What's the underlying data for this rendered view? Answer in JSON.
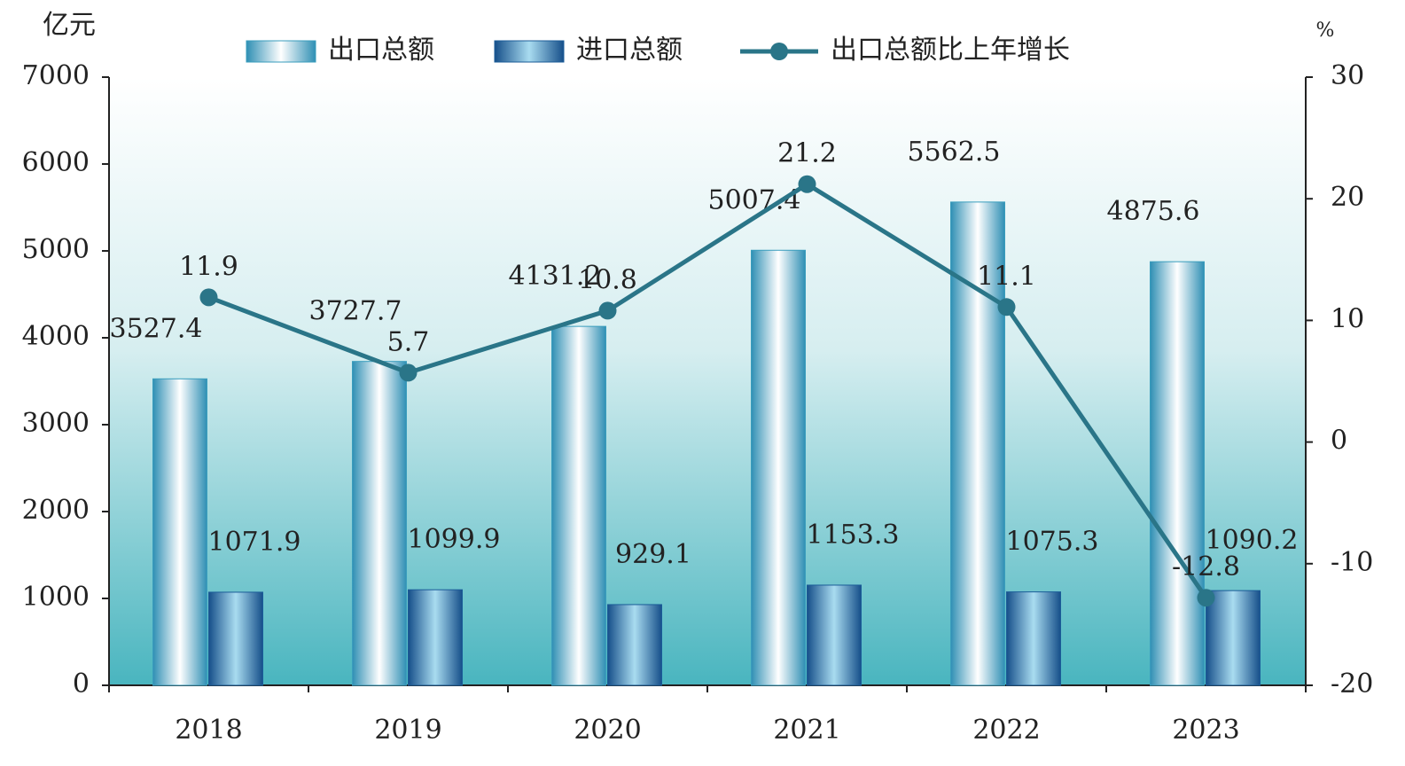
{
  "chart_data": {
    "type": "bar-line",
    "y_label": "亿元",
    "y2_label": "%",
    "categories": [
      "2018",
      "2019",
      "2020",
      "2021",
      "2022",
      "2023"
    ],
    "series": [
      {
        "name": "出口总额",
        "type": "bar",
        "color": "#3a9dbd",
        "values": [
          3527.4,
          3727.7,
          4131.2,
          5007.4,
          5562.5,
          4875.6
        ]
      },
      {
        "name": "进口总额",
        "type": "bar",
        "color": "#1b5c98",
        "values": [
          1071.9,
          1099.9,
          929.1,
          1153.3,
          1075.3,
          1090.2
        ]
      },
      {
        "name": "出口总额比上年增长",
        "type": "line",
        "axis": "y2",
        "color": "#2a7588",
        "values": [
          11.9,
          5.7,
          10.8,
          21.2,
          11.1,
          -12.8
        ]
      }
    ],
    "ylim": [
      0,
      7000
    ],
    "yticks": [
      0,
      1000,
      2000,
      3000,
      4000,
      5000,
      6000,
      7000
    ],
    "y2lim": [
      -20,
      30
    ],
    "y2ticks": [
      -20,
      -10,
      0,
      10,
      20,
      30
    ],
    "legend": "top"
  }
}
